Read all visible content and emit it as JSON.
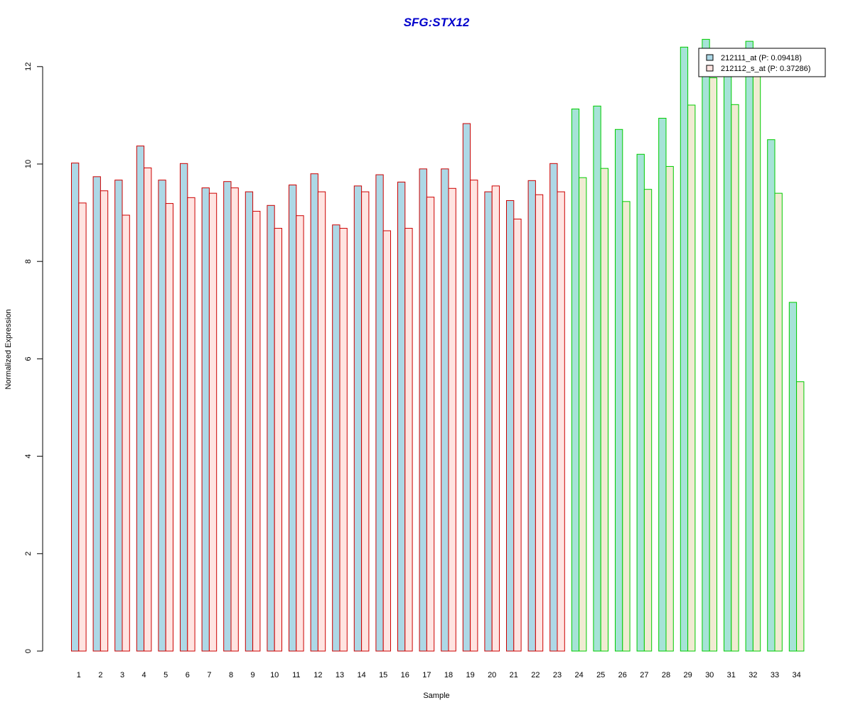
{
  "chart_data": {
    "type": "bar",
    "title": "SFG:STX12",
    "xlabel": "Sample",
    "ylabel": "Normalized Expression",
    "ylim": [
      0,
      12.5
    ],
    "yticks": [
      "0",
      "2",
      "4",
      "6",
      "8",
      "10",
      "12"
    ],
    "grid": false,
    "legend_position": "top-right",
    "categories": [
      "1",
      "2",
      "3",
      "4",
      "5",
      "6",
      "7",
      "8",
      "9",
      "10",
      "11",
      "12",
      "13",
      "14",
      "15",
      "16",
      "17",
      "18",
      "19",
      "20",
      "21",
      "22",
      "23",
      "24",
      "25",
      "26",
      "27",
      "28",
      "29",
      "30",
      "31",
      "32",
      "33",
      "34"
    ],
    "series": [
      {
        "name": "212111_at (P: 0.09418)",
        "values": [
          10.02,
          9.74,
          9.67,
          10.37,
          9.67,
          10.01,
          9.51,
          9.64,
          9.43,
          9.15,
          9.57,
          9.8,
          8.75,
          9.55,
          9.78,
          9.63,
          9.9,
          9.9,
          10.83,
          9.43,
          9.25,
          9.66,
          10.01,
          11.13,
          11.19,
          10.71,
          10.2,
          10.94,
          12.4,
          12.56,
          11.9,
          12.52,
          10.5,
          7.16
        ]
      },
      {
        "name": "212112_s_at (P: 0.37286)",
        "values": [
          9.2,
          9.45,
          8.95,
          9.92,
          9.19,
          9.31,
          9.4,
          9.51,
          9.03,
          8.68,
          8.94,
          9.43,
          8.68,
          9.43,
          8.63,
          8.68,
          9.32,
          9.5,
          9.67,
          9.55,
          8.87,
          9.37,
          9.43,
          9.72,
          9.91,
          9.23,
          9.48,
          9.95,
          11.21,
          11.77,
          11.22,
          11.9,
          9.4,
          5.53
        ]
      }
    ],
    "group_a_samples": 23,
    "colors": {
      "title": "#0000cc",
      "series1_fill": "#add8e6",
      "series2_fill": "#ffe4e1",
      "group_a_border": "#cc0000",
      "group_b_border": "#00cc00",
      "group_b_series1_fill": "#a6e3d7",
      "group_b_series2_fill": "#f0ebd2",
      "legend_series1_fill": "#add8e6",
      "legend_series2_fill": "#ffe4e1"
    }
  }
}
